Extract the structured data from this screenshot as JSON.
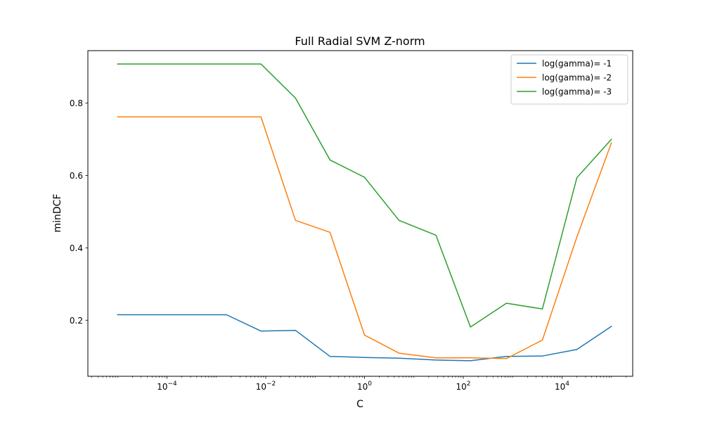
{
  "chart_data": {
    "type": "line",
    "title": "Full Radial SVM Z-norm",
    "xlabel": "C",
    "ylabel": "minDCF",
    "xscale": "log",
    "xlim": [
      2.5e-06,
      270000
    ],
    "ylim": [
      0.045,
      0.945
    ],
    "x": [
      1e-05,
      5.62e-05,
      0.000316,
      0.00178,
      0.01,
      0.0562,
      0.316,
      1.78,
      10,
      56.2,
      316,
      1780,
      10000,
      56200,
      100000
    ],
    "x_ticks": [
      {
        "value": 0.0001,
        "base": "10",
        "exp": "−4"
      },
      {
        "value": 0.01,
        "base": "10",
        "exp": "−2"
      },
      {
        "value": 1,
        "base": "10",
        "exp": "0"
      },
      {
        "value": 100,
        "base": "10",
        "exp": "2"
      },
      {
        "value": 10000,
        "base": "10",
        "exp": "4"
      }
    ],
    "y_ticks": [
      "0.2",
      "0.4",
      "0.6",
      "0.8"
    ],
    "legend_position": "top-right",
    "grid": false,
    "series": [
      {
        "name": "log(gamma)= -1",
        "color": "#1f77b4",
        "x": [
          1e-05,
          0.0016,
          0.008,
          0.04,
          0.2,
          1,
          5,
          28,
          140,
          750,
          4000,
          20000,
          100000
        ],
        "values": [
          0.215,
          0.215,
          0.17,
          0.172,
          0.1,
          0.097,
          0.095,
          0.09,
          0.088,
          0.1,
          0.101,
          0.119,
          0.183
        ]
      },
      {
        "name": "log(gamma)= -2",
        "color": "#ff7f0e",
        "x": [
          1e-05,
          0.008,
          0.04,
          0.2,
          1,
          5,
          28,
          140,
          750,
          4000,
          20000,
          100000
        ],
        "values": [
          0.762,
          0.762,
          0.476,
          0.443,
          0.159,
          0.109,
          0.096,
          0.096,
          0.094,
          0.145,
          0.43,
          0.69
        ]
      },
      {
        "name": "log(gamma)= -3",
        "color": "#2ca02c",
        "x": [
          1e-05,
          0.008,
          0.04,
          0.2,
          1,
          5,
          28,
          140,
          750,
          4000,
          20000,
          100000
        ],
        "values": [
          0.908,
          0.908,
          0.814,
          0.643,
          0.595,
          0.476,
          0.435,
          0.181,
          0.247,
          0.231,
          0.594,
          0.7
        ]
      }
    ]
  }
}
